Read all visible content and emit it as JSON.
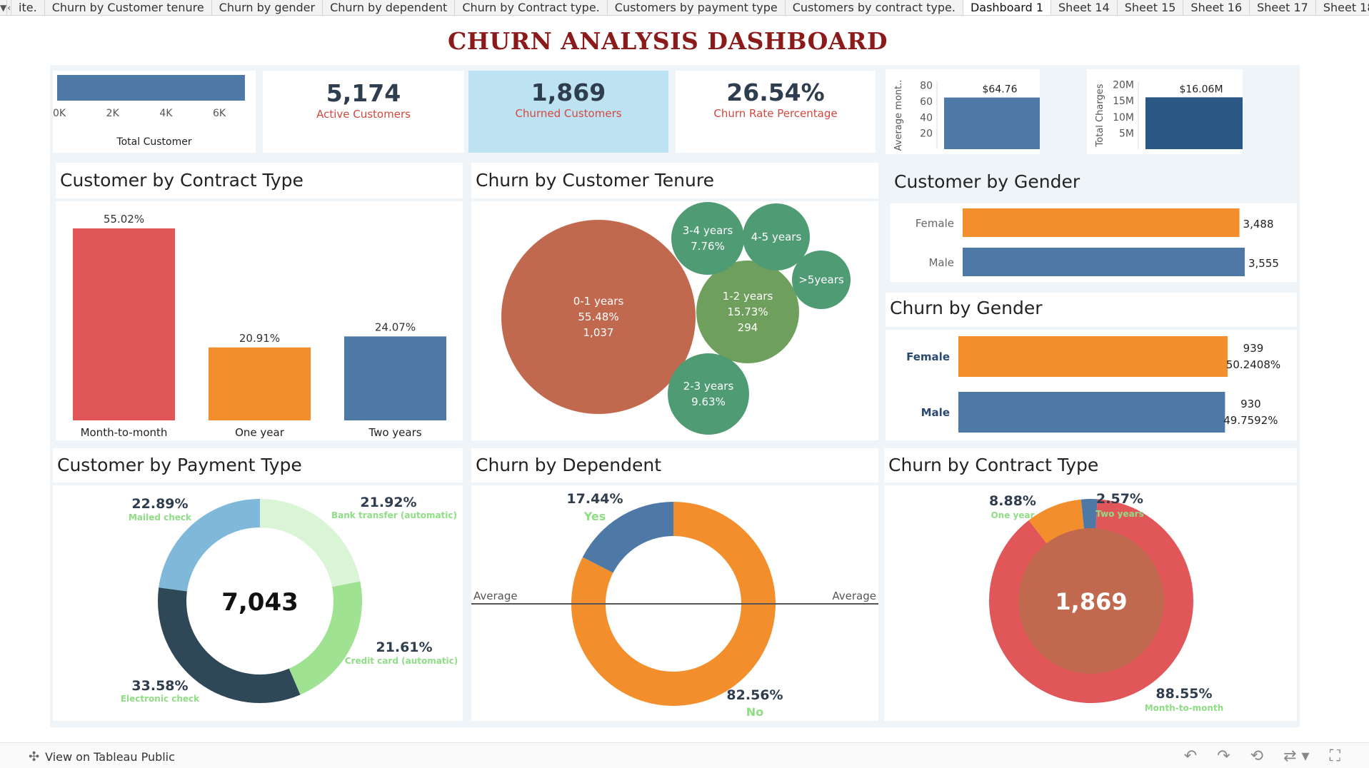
{
  "tabs": {
    "items": [
      {
        "label": "ite.",
        "active": false
      },
      {
        "label": "Churn by Customer tenure",
        "active": false
      },
      {
        "label": "Churn by gender",
        "active": false
      },
      {
        "label": "Churn by dependent",
        "active": false
      },
      {
        "label": "Churn by Contract type.",
        "active": false
      },
      {
        "label": "Customers by payment type",
        "active": false
      },
      {
        "label": "Customers by contract type.",
        "active": false
      },
      {
        "label": "Dashboard 1",
        "active": true
      },
      {
        "label": "Sheet 14",
        "active": false
      },
      {
        "label": "Sheet 15",
        "active": false
      },
      {
        "label": "Sheet 16",
        "active": false
      },
      {
        "label": "Sheet 17",
        "active": false
      },
      {
        "label": "Sheet 18",
        "active": false
      }
    ]
  },
  "dashboard": {
    "title": "CHURN ANALYSIS DASHBOARD"
  },
  "kpis": {
    "active": {
      "value": "5,174",
      "label": "Active Customers"
    },
    "churned": {
      "value": "1,869",
      "label": "Churned Customers"
    },
    "rate": {
      "value": "26.54%",
      "label": "Churn Rate Percentage"
    }
  },
  "panels": {
    "contract": {
      "title": "Customer by Contract Type"
    },
    "tenure": {
      "title": "Churn by Customer Tenure"
    },
    "gender": {
      "title": "Customer by Gender"
    },
    "churn_gender": {
      "title": "Churn by Gender"
    },
    "payment": {
      "title": "Customer by Payment Type"
    },
    "dependent": {
      "title": "Churn by Dependent"
    },
    "churn_contract": {
      "title": "Churn by Contract Type"
    }
  },
  "colors": {
    "blue": "#4e79a7",
    "darkblue": "#2a5783",
    "orange": "#f28e2b",
    "red": "#e15759",
    "lightblue_kpi": "#bde3f2",
    "navy": "#2f4858",
    "green_light": "#9fe291",
    "green_pale": "#d9f5d6",
    "sky": "#7fb8d8"
  },
  "chart_data": [
    {
      "id": "total_customer",
      "type": "bar",
      "orientation": "horizontal",
      "categories": [
        ""
      ],
      "values": [
        7043
      ],
      "xlabel": "Total Customer",
      "xticks": [
        "0K",
        "2K",
        "4K",
        "6K"
      ],
      "xlim": [
        0,
        7100
      ]
    },
    {
      "id": "avg_monthly",
      "type": "bar",
      "categories": [
        ""
      ],
      "values": [
        64.76
      ],
      "data_labels": [
        "$64.76"
      ],
      "ylabel": "Average mont..",
      "yticks": [
        20,
        40,
        60,
        80
      ],
      "ylim": [
        0,
        85
      ]
    },
    {
      "id": "total_charges",
      "type": "bar",
      "categories": [
        ""
      ],
      "values": [
        16.06
      ],
      "data_labels": [
        "$16.06M"
      ],
      "ylabel": "Total Charges",
      "yticks": [
        "5M",
        "10M",
        "15M",
        "20M"
      ],
      "ylim": [
        0,
        21
      ]
    },
    {
      "id": "contract_type",
      "type": "bar",
      "categories": [
        "Month-to-month",
        "One year",
        "Two years"
      ],
      "values": [
        55.02,
        20.91,
        24.07
      ],
      "data_labels": [
        "55.02%",
        "20.91%",
        "24.07%"
      ],
      "colors": [
        "#e15759",
        "#f28e2b",
        "#4e79a7"
      ],
      "ylim": [
        0,
        60
      ]
    },
    {
      "id": "tenure",
      "type": "bubble",
      "bubbles": [
        {
          "lines": [
            "0-1 years",
            "55.48%",
            "1,037"
          ],
          "pct": 55.48
        },
        {
          "lines": [
            "1-2 years",
            "15.73%",
            "294"
          ],
          "pct": 15.73
        },
        {
          "lines": [
            "2-3 years",
            "9.63%"
          ],
          "pct": 9.63
        },
        {
          "lines": [
            "3-4 years",
            "7.76%"
          ],
          "pct": 7.76
        },
        {
          "lines": [
            "4-5 years"
          ],
          "pct": 6.5
        },
        {
          "lines": [
            ">5years"
          ],
          "pct": 4.9
        }
      ]
    },
    {
      "id": "gender",
      "type": "bar",
      "orientation": "horizontal",
      "categories": [
        "Female",
        "Male"
      ],
      "values": [
        3488,
        3555
      ],
      "data_labels": [
        "3,488",
        "3,555"
      ],
      "colors": [
        "#f28e2b",
        "#4e79a7"
      ]
    },
    {
      "id": "churn_gender",
      "type": "bar",
      "orientation": "horizontal",
      "categories": [
        "Female",
        "Male"
      ],
      "values": [
        939,
        930
      ],
      "data_labels": [
        [
          "939",
          "50.2408%"
        ],
        [
          "930",
          "49.7592%"
        ]
      ],
      "colors": [
        "#f28e2b",
        "#4e79a7"
      ]
    },
    {
      "id": "payment",
      "type": "pie",
      "center_label": "7,043",
      "slices": [
        {
          "label": "Bank transfer (automatic)",
          "pct": 21.92,
          "pct_label": "21.92%",
          "color": "#d9f5d6"
        },
        {
          "label": "Credit card (automatic)",
          "pct": 21.61,
          "pct_label": "21.61%",
          "color": "#9fe291"
        },
        {
          "label": "Electronic check",
          "pct": 33.58,
          "pct_label": "33.58%",
          "color": "#2f4858"
        },
        {
          "label": "Mailed check",
          "pct": 22.89,
          "pct_label": "22.89%",
          "color": "#7fb8d8"
        }
      ]
    },
    {
      "id": "dependent",
      "type": "pie",
      "reference_line": "Average",
      "slices": [
        {
          "label": "No",
          "pct": 82.56,
          "pct_label": "82.56%",
          "color": "#f28e2b"
        },
        {
          "label": "Yes",
          "pct": 17.44,
          "pct_label": "17.44%",
          "color": "#4e79a7"
        }
      ]
    },
    {
      "id": "churn_contract",
      "type": "pie",
      "center_label": "1,869",
      "slices": [
        {
          "label": "Two years",
          "pct": 2.57,
          "pct_label": "2.57%",
          "color": "#4e79a7"
        },
        {
          "label": "Month-to-month",
          "pct": 88.55,
          "pct_label": "88.55%",
          "color": "#e15759"
        },
        {
          "label": "One year",
          "pct": 8.88,
          "pct_label": "8.88%",
          "color": "#f28e2b"
        }
      ]
    }
  ],
  "footer": {
    "tableau_link": "View on Tableau Public"
  }
}
